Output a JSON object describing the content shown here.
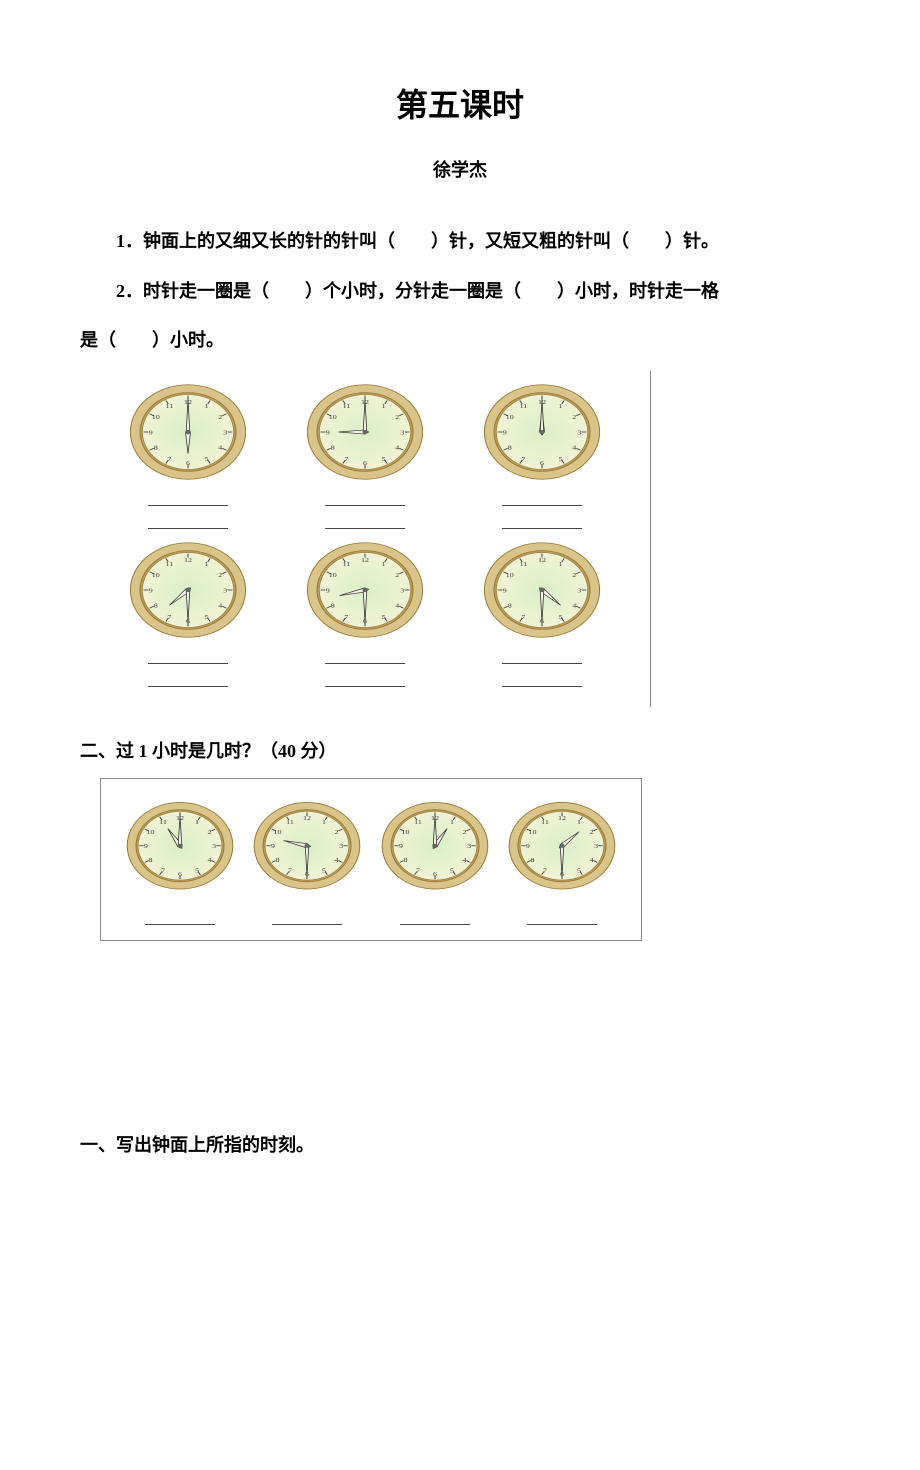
{
  "title": "第五课时",
  "author": "徐学杰",
  "q1": "1．钟面上的又细又长的针的针叫（　　）针，又短又粗的针叫（　　）针。",
  "q2a": "2．时针走一圈是（　　）个小时，分针走一圈是（　　）小时，时针走一格",
  "q2b": "是（　　）小时。",
  "section2": "二、过 1 小时是几时？（40 分）",
  "section3": "一、写出钟面上所指的时刻。",
  "clock_style": {
    "rim_stroke": "#997733",
    "rim_fill_outer": "#d9c48a",
    "rim_fill_inner": "#b89b5a",
    "face_center": "#daf0c8",
    "face_edge": "#f5f3d8",
    "tick_color": "#3a3a3a",
    "num_color": "#3a3a3a",
    "hand_fill": "#f8f0e8",
    "hand_stroke": "#333333",
    "center_fill": "#666666",
    "num_font_size": 8
  },
  "clocks_block1": [
    [
      {
        "hour": 6,
        "minute": 0
      },
      {
        "hour": 9,
        "minute": 0
      },
      {
        "hour": 12,
        "minute": 0
      }
    ],
    [
      {
        "hour": 7,
        "minute": 30
      },
      {
        "hour": 8,
        "minute": 30
      },
      {
        "hour": 4,
        "minute": 30
      }
    ]
  ],
  "clocks_block2": [
    {
      "hour": 11,
      "minute": 0
    },
    {
      "hour": 9,
      "minute": 30
    },
    {
      "hour": 1,
      "minute": 0
    },
    {
      "hour": 1,
      "minute": 30
    }
  ]
}
